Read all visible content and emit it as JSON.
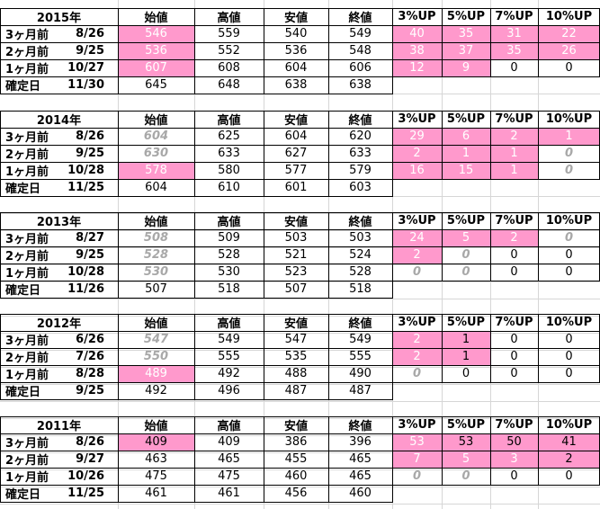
{
  "headers": {
    "open": "始値",
    "high": "高値",
    "low": "安値",
    "close": "終値",
    "up3": "3%UP",
    "up5": "5%UP",
    "up7": "7%UP",
    "up10": "10%UP"
  },
  "blocks": [
    {
      "year": "2015年",
      "rows": [
        {
          "label": "3ヶ月前",
          "date": "8/26",
          "open": "546",
          "high": "559",
          "low": "540",
          "close": "549",
          "up3": "40",
          "up5": "35",
          "up7": "31",
          "up10": "22",
          "style": {
            "open": "pink",
            "up3": "pink",
            "up5": "pink",
            "up7": "pink",
            "up10": "pink"
          }
        },
        {
          "label": "2ヶ月前",
          "date": "9/25",
          "open": "536",
          "high": "552",
          "low": "536",
          "close": "548",
          "up3": "38",
          "up5": "37",
          "up7": "35",
          "up10": "26",
          "style": {
            "open": "pink",
            "up3": "pink",
            "up5": "pink",
            "up7": "pink",
            "up10": "pink"
          }
        },
        {
          "label": "1ヶ月前",
          "date": "10/27",
          "open": "607",
          "high": "608",
          "low": "604",
          "close": "606",
          "up3": "12",
          "up5": "9",
          "up7": "0",
          "up10": "0",
          "style": {
            "open": "pink",
            "up3": "pink",
            "up5": "pink"
          }
        },
        {
          "label": "確定日",
          "date": "11/30",
          "open": "645",
          "high": "648",
          "low": "638",
          "close": "638",
          "up3": "",
          "up5": "",
          "up7": "",
          "up10": "",
          "style": {}
        }
      ]
    },
    {
      "year": "2014年",
      "rows": [
        {
          "label": "3ヶ月前",
          "date": "8/26",
          "open": "604",
          "high": "625",
          "low": "604",
          "close": "620",
          "up3": "29",
          "up5": "6",
          "up7": "2",
          "up10": "1",
          "style": {
            "open": "grayit",
            "up3": "pink",
            "up5": "pink",
            "up7": "pink",
            "up10": "pink"
          }
        },
        {
          "label": "2ヶ月前",
          "date": "9/25",
          "open": "630",
          "high": "633",
          "low": "627",
          "close": "633",
          "up3": "2",
          "up5": "1",
          "up7": "1",
          "up10": "0",
          "style": {
            "open": "grayit",
            "up3": "pink",
            "up5": "pink",
            "up7": "pink",
            "up10": "grayit"
          }
        },
        {
          "label": "1ヶ月前",
          "date": "10/28",
          "open": "578",
          "high": "580",
          "low": "577",
          "close": "579",
          "up3": "16",
          "up5": "15",
          "up7": "1",
          "up10": "0",
          "style": {
            "open": "pink",
            "up3": "pink",
            "up5": "pink",
            "up7": "pink",
            "up10": "grayit"
          }
        },
        {
          "label": "確定日",
          "date": "11/25",
          "open": "604",
          "high": "610",
          "low": "601",
          "close": "603",
          "up3": "",
          "up5": "",
          "up7": "",
          "up10": "",
          "style": {}
        }
      ]
    },
    {
      "year": "2013年",
      "rows": [
        {
          "label": "3ヶ月前",
          "date": "8/27",
          "open": "508",
          "high": "509",
          "low": "503",
          "close": "503",
          "up3": "24",
          "up5": "5",
          "up7": "2",
          "up10": "0",
          "style": {
            "open": "grayit",
            "up3": "pink",
            "up5": "pink",
            "up7": "pink",
            "up10": "grayit"
          }
        },
        {
          "label": "2ヶ月前",
          "date": "9/25",
          "open": "528",
          "high": "528",
          "low": "521",
          "close": "524",
          "up3": "2",
          "up5": "0",
          "up7": "0",
          "up10": "0",
          "style": {
            "open": "grayit",
            "up3": "pink",
            "up5": "grayit"
          }
        },
        {
          "label": "1ヶ月前",
          "date": "10/28",
          "open": "530",
          "high": "530",
          "low": "523",
          "close": "528",
          "up3": "0",
          "up5": "0",
          "up7": "0",
          "up10": "0",
          "style": {
            "open": "grayit",
            "up3": "grayit",
            "up5": "grayit"
          }
        },
        {
          "label": "確定日",
          "date": "11/26",
          "open": "507",
          "high": "518",
          "low": "507",
          "close": "518",
          "up3": "",
          "up5": "",
          "up7": "",
          "up10": "",
          "style": {}
        }
      ]
    },
    {
      "year": "2012年",
      "rows": [
        {
          "label": "3ヶ月前",
          "date": "6/26",
          "open": "547",
          "high": "549",
          "low": "547",
          "close": "549",
          "up3": "2",
          "up5": "1",
          "up7": "0",
          "up10": "0",
          "style": {
            "open": "grayit",
            "up3": "pink",
            "up5": "pinkdark"
          }
        },
        {
          "label": "2ヶ月前",
          "date": "7/26",
          "open": "550",
          "high": "555",
          "low": "535",
          "close": "555",
          "up3": "2",
          "up5": "1",
          "up7": "0",
          "up10": "0",
          "style": {
            "open": "grayit",
            "up3": "pink",
            "up5": "pinkdark"
          }
        },
        {
          "label": "1ヶ月前",
          "date": "8/28",
          "open": "489",
          "high": "492",
          "low": "488",
          "close": "490",
          "up3": "0",
          "up5": "0",
          "up7": "0",
          "up10": "0",
          "style": {
            "open": "pink",
            "up3": "grayit"
          }
        },
        {
          "label": "確定日",
          "date": "9/25",
          "open": "492",
          "high": "496",
          "low": "487",
          "close": "487",
          "up3": "",
          "up5": "",
          "up7": "",
          "up10": "",
          "style": {}
        }
      ]
    },
    {
      "year": "2011年",
      "rows": [
        {
          "label": "3ヶ月前",
          "date": "8/26",
          "open": "409",
          "high": "409",
          "low": "386",
          "close": "396",
          "up3": "53",
          "up5": "53",
          "up7": "50",
          "up10": "41",
          "style": {
            "open": "pinkdark",
            "up3": "pink",
            "up5": "pinkdark",
            "up7": "pinkdark",
            "up10": "pinkdark"
          }
        },
        {
          "label": "2ヶ月前",
          "date": "9/27",
          "open": "463",
          "high": "465",
          "low": "455",
          "close": "465",
          "up3": "7",
          "up5": "5",
          "up7": "3",
          "up10": "2",
          "style": {
            "up3": "pink",
            "up5": "pink",
            "up7": "pink",
            "up10": "pinkdark"
          }
        },
        {
          "label": "1ヶ月前",
          "date": "10/26",
          "open": "475",
          "high": "475",
          "low": "460",
          "close": "465",
          "up3": "0",
          "up5": "0",
          "up7": "0",
          "up10": "0",
          "style": {
            "up3": "grayit",
            "up5": "grayit"
          }
        },
        {
          "label": "確定日",
          "date": "11/25",
          "open": "461",
          "high": "461",
          "low": "456",
          "close": "460",
          "up3": "",
          "up5": "",
          "up7": "",
          "up10": "",
          "style": {}
        }
      ]
    }
  ]
}
